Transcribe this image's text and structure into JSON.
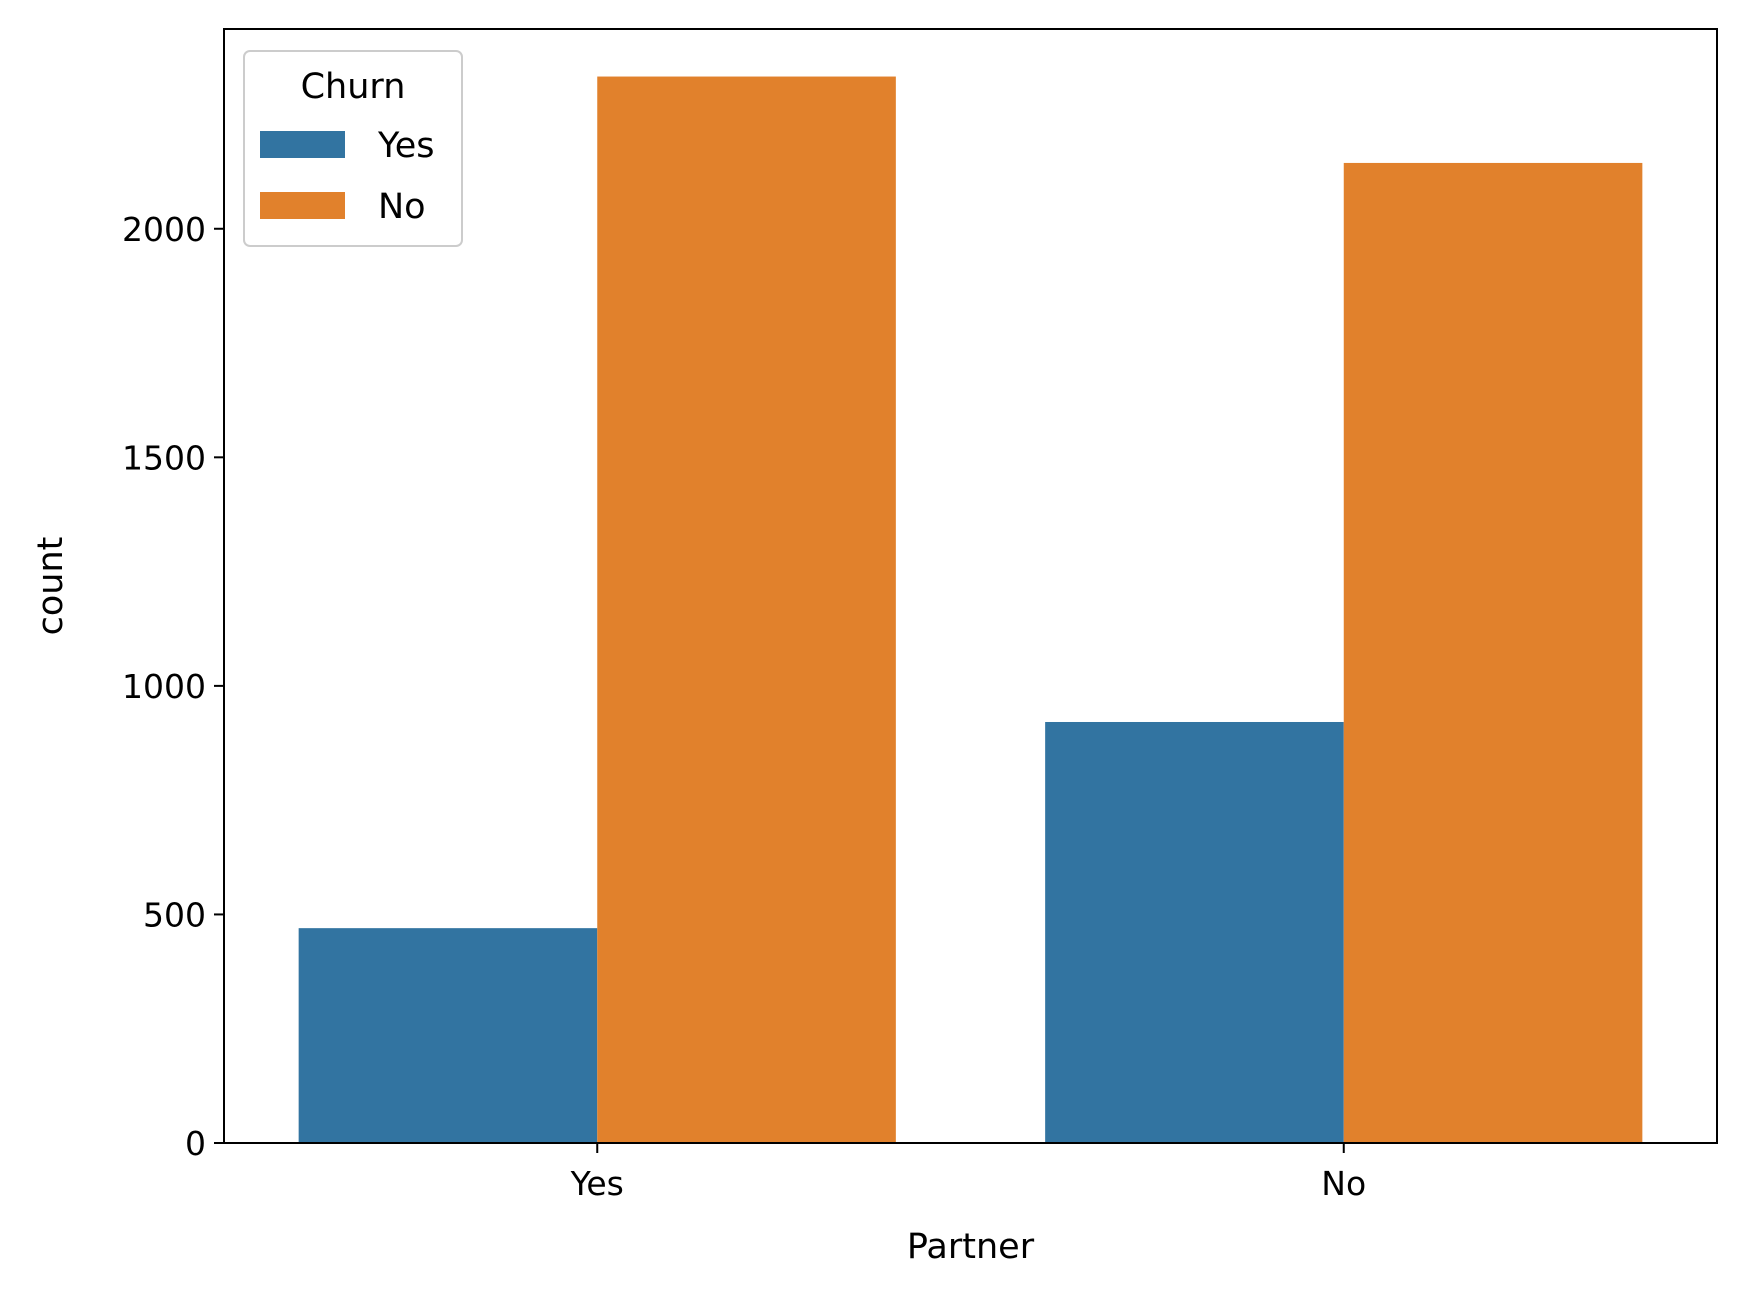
{
  "chart_data": {
    "type": "bar",
    "xlabel": "Partner",
    "ylabel": "count",
    "categories": [
      "Yes",
      "No"
    ],
    "series": [
      {
        "name": "Yes",
        "values": [
          470,
          921
        ],
        "color": "#3274a1"
      },
      {
        "name": "No",
        "values": [
          2333,
          2144
        ],
        "color": "#e1812c"
      }
    ],
    "ylim": [
      0,
      2437
    ],
    "yticks": [
      0,
      500,
      1000,
      1500,
      2000
    ],
    "legend": {
      "title": "Churn",
      "placement": "top-left"
    },
    "grid": false
  }
}
